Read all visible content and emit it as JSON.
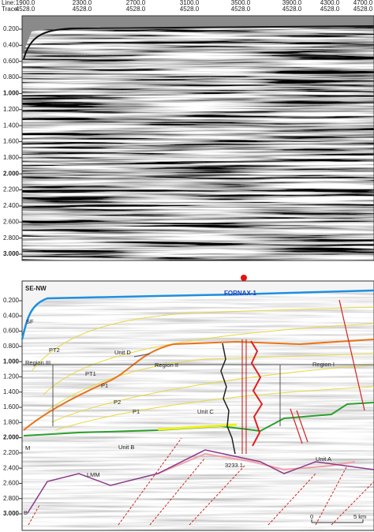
{
  "top_panel": {
    "line_label": "Line:",
    "trace_label": "Trace:",
    "lines": [
      "1900.0",
      "2300.0",
      "2700.0",
      "3100.0",
      "3500.0",
      "3900.0",
      "4300.0",
      "4700.0"
    ],
    "traces": [
      "4528.0",
      "4528.0",
      "4528.0",
      "4528.0",
      "4528.0",
      "4528.0",
      "4528.0",
      "4528.0"
    ],
    "depth_ticks": [
      "0.200",
      "0.400",
      "0.600",
      "0.800",
      "1.000",
      "1.200",
      "1.400",
      "1.600",
      "1.800",
      "2.000",
      "2.200",
      "2.400",
      "2.600",
      "2.800",
      "3.000"
    ]
  },
  "bottom_panel": {
    "section_label": "SE-NW",
    "well": "FORNAX-1",
    "depth_ticks": [
      "0.200",
      "0.400",
      "0.600",
      "0.800",
      "1.000",
      "1.200",
      "1.400",
      "1.600",
      "1.800",
      "2.000",
      "2.200",
      "2.400",
      "2.600",
      "2.800",
      "3.000"
    ],
    "annotations": {
      "sf": "SF",
      "pt2": "PT2",
      "region_3": "Region III",
      "pt1": "PT1",
      "unit_d": "Unit D",
      "region_2": "Region II",
      "region_1": "Region I",
      "p1_upper": "P1",
      "p2": "P2",
      "p1": "P1",
      "unit_c": "Unit C",
      "m": "M",
      "unit_b": "Unit B",
      "well_depth": "3233.1",
      "unit_a": "Unit A",
      "lmm": "LMM",
      "b": "B"
    },
    "scale": {
      "start": "0",
      "end": "5 km"
    }
  }
}
